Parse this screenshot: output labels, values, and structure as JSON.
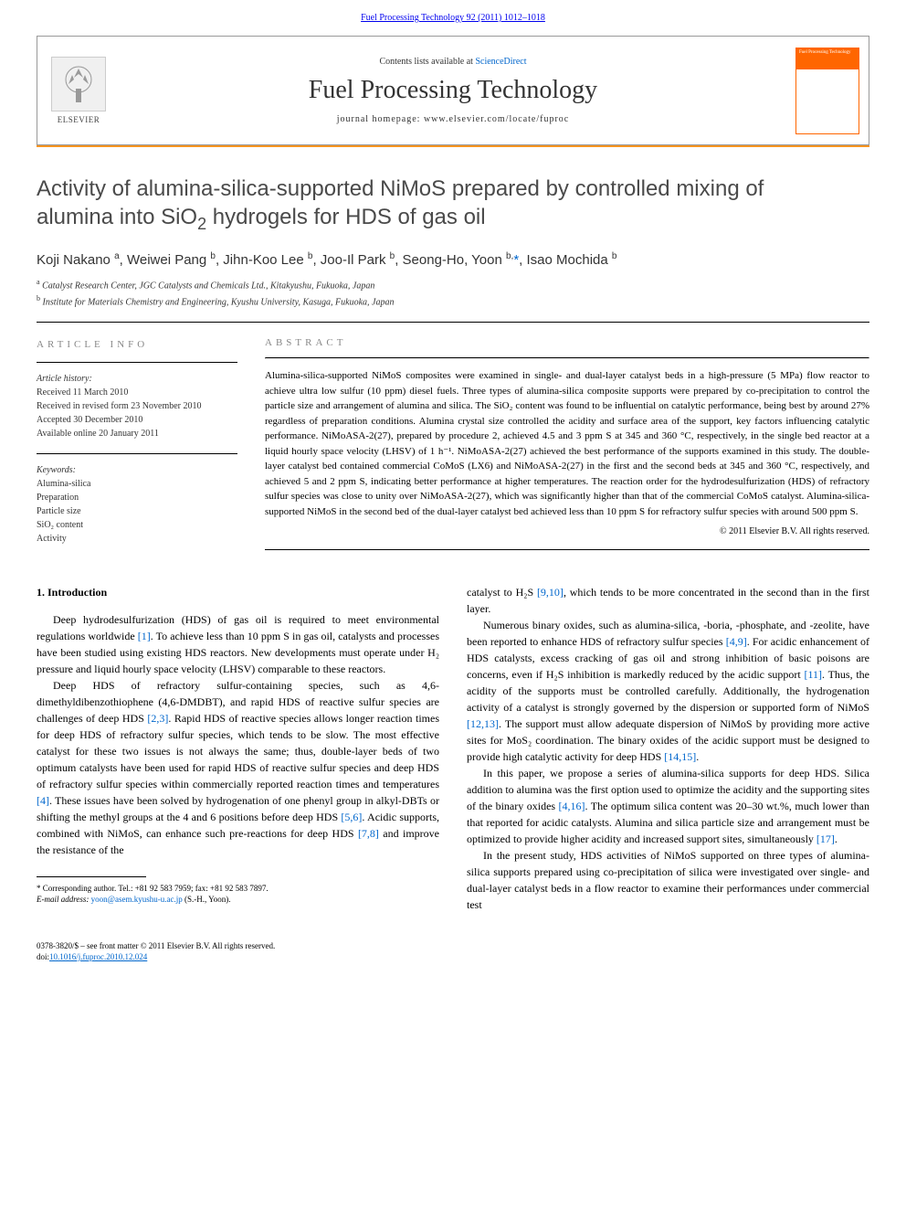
{
  "header": {
    "journal_ref_link": "Fuel Processing Technology 92 (2011) 1012–1018",
    "contents_prefix": "Contents lists available at ",
    "contents_link": "ScienceDirect",
    "journal_title": "Fuel Processing Technology",
    "homepage_prefix": "journal homepage: ",
    "homepage_url": "www.elsevier.com/locate/fuproc",
    "elsevier_label": "ELSEVIER",
    "cover_text": "Fuel Processing Technology"
  },
  "article": {
    "title_line1": "Activity of alumina-silica-supported NiMoS prepared by controlled mixing of",
    "title_line2": "alumina into SiO",
    "title_sub": "2",
    "title_line2b": " hydrogels for HDS of gas oil",
    "authors_html": "Koji Nakano <sup>a</sup>, Weiwei Pang <sup>b</sup>, Jihn-Koo Lee <sup>b</sup>, Joo-Il Park <sup>b</sup>, Seong-Ho, Yoon <sup>b,</sup>",
    "corr_marker": "*",
    "authors_tail": ", Isao Mochida <sup>b</sup>",
    "affiliations": [
      {
        "sup": "a",
        "text": " Catalyst Research Center, JGC Catalysts and Chemicals Ltd., Kitakyushu, Fukuoka, Japan"
      },
      {
        "sup": "b",
        "text": " Institute for Materials Chemistry and Engineering, Kyushu University, Kasuga, Fukuoka, Japan"
      }
    ]
  },
  "meta": {
    "info_heading": "ARTICLE INFO",
    "history_label": "Article history:",
    "history": [
      "Received 11 March 2010",
      "Received in revised form 23 November 2010",
      "Accepted 30 December 2010",
      "Available online 20 January 2011"
    ],
    "keywords_label": "Keywords:",
    "keywords": [
      "Alumina-silica",
      "Preparation",
      "Particle size",
      "SiO₂ content",
      "Activity"
    ]
  },
  "abstract": {
    "heading": "ABSTRACT",
    "text": "Alumina-silica-supported NiMoS composites were examined in single- and dual-layer catalyst beds in a high-pressure (5 MPa) flow reactor to achieve ultra low sulfur (10 ppm) diesel fuels. Three types of alumina-silica composite supports were prepared by co-precipitation to control the particle size and arrangement of alumina and silica. The SiO₂ content was found to be influential on catalytic performance, being best by around 27% regardless of preparation conditions. Alumina crystal size controlled the acidity and surface area of the support, key factors influencing catalytic performance. NiMoASA-2(27), prepared by procedure 2, achieved 4.5 and 3 ppm S at 345 and 360 °C, respectively, in the single bed reactor at a liquid hourly space velocity (LHSV) of 1 h⁻¹. NiMoASA-2(27) achieved the best performance of the supports examined in this study. The double-layer catalyst bed contained commercial CoMoS (LX6) and NiMoASA-2(27) in the first and the second beds at 345 and 360 °C, respectively, and achieved 5 and 2 ppm S, indicating better performance at higher temperatures. The reaction order for the hydrodesulfurization (HDS) of refractory sulfur species was close to unity over NiMoASA-2(27), which was significantly higher than that of the commercial CoMoS catalyst. Alumina-silica-supported NiMoS in the second bed of the dual-layer catalyst bed achieved less than 10 ppm S for refractory sulfur species with around 500 ppm S.",
    "copyright": "© 2011 Elsevier B.V. All rights reserved."
  },
  "body": {
    "section_number": "1.",
    "section_title": "Introduction",
    "left": {
      "p1": "Deep hydrodesulfurization (HDS) of gas oil is required to meet environmental regulations worldwide ",
      "p1_ref": "[1]",
      "p1b": ". To achieve less than 10 ppm S in gas oil, catalysts and processes have been studied using existing HDS reactors. New developments must operate under H₂ pressure and liquid hourly space velocity (LHSV) comparable to these reactors.",
      "p2a": "Deep HDS of refractory sulfur-containing species, such as 4,6-dimethyldibenzothiophene (4,6-DMDBT), and rapid HDS of reactive sulfur species are challenges of deep HDS ",
      "p2_ref1": "[2,3]",
      "p2b": ". Rapid HDS of reactive species allows longer reaction times for deep HDS of refractory sulfur species, which tends to be slow. The most effective catalyst for these two issues is not always the same; thus, double-layer beds of two optimum catalysts have been used for rapid HDS of reactive sulfur species and deep HDS of refractory sulfur species within commercially reported reaction times and temperatures ",
      "p2_ref2": "[4]",
      "p2c": ". These issues have been solved by hydrogenation of one phenyl group in alkyl-DBTs or shifting the methyl groups at the 4 and 6 positions before deep HDS ",
      "p2_ref3": "[5,6]",
      "p2d": ". Acidic supports, combined with NiMoS, can enhance such pre-reactions for deep HDS ",
      "p2_ref4": "[7,8]",
      "p2e": " and improve the resistance of the"
    },
    "right": {
      "p1a": "catalyst to H₂S ",
      "p1_ref": "[9,10]",
      "p1b": ", which tends to be more concentrated in the second than in the first layer.",
      "p2a": "Numerous binary oxides, such as alumina-silica, -boria, -phosphate, and -zeolite, have been reported to enhance HDS of refractory sulfur species ",
      "p2_ref1": "[4,9]",
      "p2b": ". For acidic enhancement of HDS catalysts, excess cracking of gas oil and strong inhibition of basic poisons are concerns, even if H₂S inhibition is markedly reduced by the acidic support ",
      "p2_ref2": "[11]",
      "p2c": ". Thus, the acidity of the supports must be controlled carefully. Additionally, the hydrogenation activity of a catalyst is strongly governed by the dispersion or supported form of NiMoS ",
      "p2_ref3": "[12,13]",
      "p2d": ". The support must allow adequate dispersion of NiMoS by providing more active sites for MoS₂ coordination. The binary oxides of the acidic support must be designed to provide high catalytic activity for deep HDS ",
      "p2_ref4": "[14,15]",
      "p2e": ".",
      "p3a": "In this paper, we propose a series of alumina-silica supports for deep HDS. Silica addition to alumina was the first option used to optimize the acidity and the supporting sites of the binary oxides ",
      "p3_ref1": "[4,16]",
      "p3b": ". The optimum silica content was 20–30 wt.%, much lower than that reported for acidic catalysts. Alumina and silica particle size and arrangement must be optimized to provide higher acidity and increased support sites, simultaneously ",
      "p3_ref2": "[17]",
      "p3c": ".",
      "p4": "In the present study, HDS activities of NiMoS supported on three types of alumina-silica supports prepared using co-precipitation of silica were investigated over single- and dual-layer catalyst beds in a flow reactor to examine their performances under commercial test"
    }
  },
  "footnote": {
    "corr_label": "* Corresponding author. Tel.: +81 92 583 7959; fax: +81 92 583 7897.",
    "email_label": "E-mail address: ",
    "email": "yoon@asem.kyushu-u.ac.jp",
    "email_tail": " (S.-H., Yoon)."
  },
  "footer": {
    "line1": "0378-3820/$ – see front matter © 2011 Elsevier B.V. All rights reserved.",
    "doi_label": "doi:",
    "doi": "10.1016/j.fuproc.2010.12.024"
  },
  "colors": {
    "link": "#0066cc",
    "orange": "#f7941e",
    "text": "#000000",
    "heading_gray": "#4a4a4a"
  }
}
